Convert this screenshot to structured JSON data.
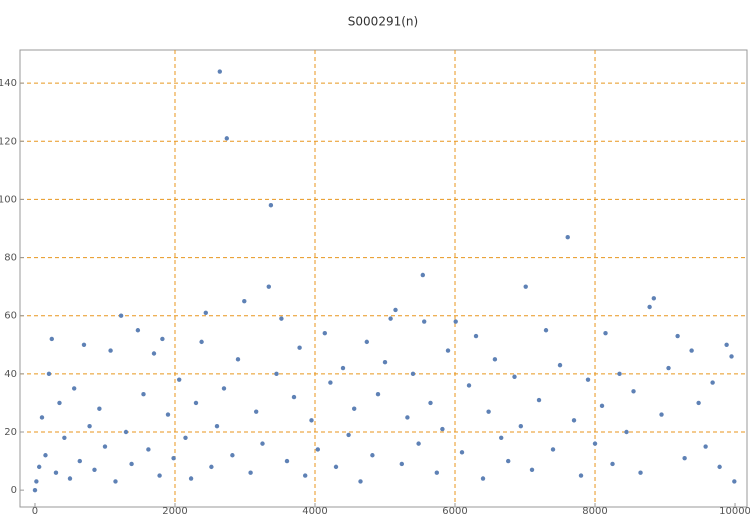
{
  "chart_data": {
    "type": "scatter",
    "title": "S000291(n)",
    "xlim": [
      -214,
      10171
    ],
    "ylim": [
      -5.8,
      151.4
    ],
    "xticks": [
      0,
      2000,
      4000,
      6000,
      8000,
      10000
    ],
    "yticks": [
      0,
      20,
      40,
      60,
      80,
      100,
      120,
      140
    ],
    "grid": true,
    "series": [
      {
        "color": "#5e81b5",
        "x": [
          0,
          20,
          60,
          100,
          150,
          200,
          240,
          300,
          350,
          420,
          500,
          560,
          640,
          700,
          780,
          850,
          920,
          1000,
          1080,
          1150,
          1230,
          1300,
          1380,
          1470,
          1550,
          1620,
          1700,
          1780,
          1820,
          1900,
          1980,
          2060,
          2150,
          2230,
          2300,
          2380,
          2440,
          2520,
          2600,
          2640,
          2700,
          2740,
          2820,
          2900,
          2990,
          3080,
          3160,
          3250,
          3340,
          3370,
          3450,
          3520,
          3600,
          3700,
          3780,
          3860,
          3950,
          4040,
          4140,
          4220,
          4300,
          4400,
          4480,
          4560,
          4650,
          4740,
          4820,
          4900,
          5000,
          5080,
          5150,
          5240,
          5320,
          5400,
          5480,
          5540,
          5560,
          5650,
          5740,
          5820,
          5900,
          6010,
          6100,
          6200,
          6300,
          6400,
          6480,
          6570,
          6660,
          6760,
          6850,
          6940,
          7010,
          7100,
          7200,
          7300,
          7400,
          7500,
          7610,
          7700,
          7800,
          7900,
          8000,
          8100,
          8150,
          8250,
          8350,
          8450,
          8550,
          8650,
          8780,
          8840,
          8950,
          9050,
          9180,
          9280,
          9380,
          9480,
          9580,
          9680,
          9780,
          9880,
          9950,
          9990
        ],
        "y": [
          0,
          3,
          8,
          25,
          12,
          40,
          52,
          6,
          30,
          18,
          4,
          35,
          10,
          50,
          22,
          7,
          28,
          15,
          48,
          3,
          60,
          20,
          9,
          55,
          33,
          14,
          47,
          5,
          52,
          26,
          11,
          38,
          18,
          4,
          30,
          51,
          61,
          8,
          22,
          144,
          35,
          121,
          12,
          45,
          65,
          6,
          27,
          16,
          70,
          98,
          40,
          59,
          10,
          32,
          49,
          5,
          24,
          14,
          54,
          37,
          8,
          42,
          19,
          28,
          3,
          51,
          12,
          33,
          44,
          59,
          62,
          9,
          25,
          40,
          16,
          74,
          58,
          30,
          6,
          21,
          48,
          58,
          13,
          36,
          53,
          4,
          27,
          45,
          18,
          10,
          39,
          22,
          70,
          7,
          31,
          55,
          14,
          43,
          87,
          24,
          5,
          38,
          16,
          29,
          54,
          9,
          40,
          20,
          34,
          6,
          63,
          66,
          26,
          42,
          53,
          11,
          48,
          30,
          15,
          37,
          8,
          50,
          46,
          3
        ]
      }
    ]
  }
}
